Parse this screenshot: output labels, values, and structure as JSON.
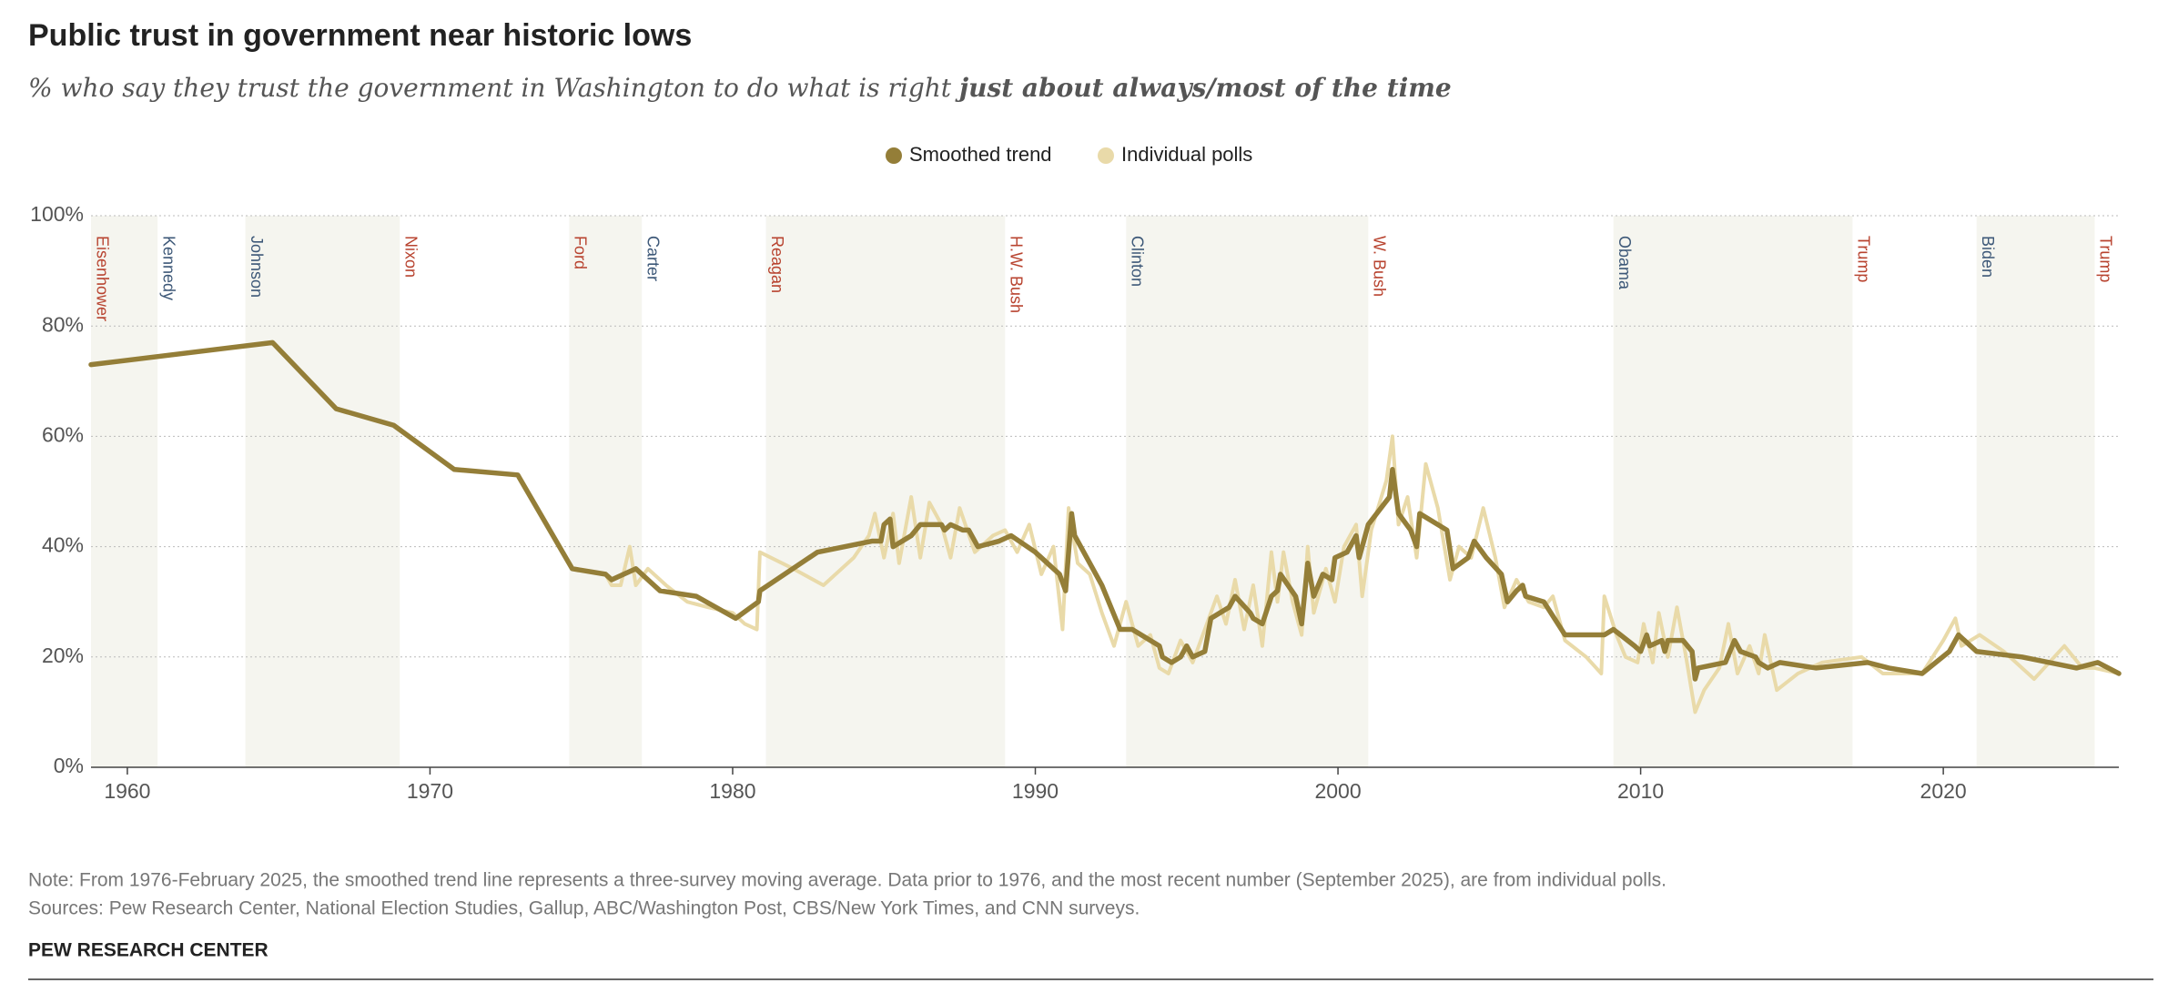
{
  "chart_data": {
    "type": "line",
    "title": "Public trust in government near historic lows",
    "subtitle": "% who say they trust the government in Washington to do what is right ",
    "subtitle_emphasis": "just about always/most of the time",
    "xlim": [
      1958.8,
      2025.8
    ],
    "xticks": [
      1960,
      1970,
      1980,
      1990,
      2000,
      2010,
      2020
    ],
    "ylim": [
      0,
      100
    ],
    "yticks": [
      {
        "value": 0,
        "label": "0%"
      },
      {
        "value": 20,
        "label": "20%"
      },
      {
        "value": 40,
        "label": "40%"
      },
      {
        "value": 60,
        "label": "60%"
      },
      {
        "value": 80,
        "label": "80%"
      },
      {
        "value": 100,
        "label": "100%"
      }
    ],
    "grid": true,
    "legend": "top",
    "presidents": [
      {
        "name": "Eisenhower",
        "start": 1953,
        "color": "#b8432f"
      },
      {
        "name": "Kennedy",
        "start": 1961,
        "color": "#3d5878"
      },
      {
        "name": "Johnson",
        "start": 1963.9,
        "color": "#3d5878"
      },
      {
        "name": "Nixon",
        "start": 1969,
        "color": "#b8432f"
      },
      {
        "name": "Ford",
        "start": 1974.6,
        "color": "#b8432f"
      },
      {
        "name": "Carter",
        "start": 1977,
        "color": "#3d5878"
      },
      {
        "name": "Reagan",
        "start": 1981.1,
        "color": "#b8432f"
      },
      {
        "name": "H.W. Bush",
        "start": 1989,
        "color": "#b8432f"
      },
      {
        "name": "Clinton",
        "start": 1993,
        "color": "#3d5878"
      },
      {
        "name": "W. Bush",
        "start": 2001,
        "color": "#b8432f"
      },
      {
        "name": "Obama",
        "start": 2009.1,
        "color": "#3d5878"
      },
      {
        "name": "Trump",
        "start": 2017,
        "color": "#b8432f"
      },
      {
        "name": "Biden",
        "start": 2021.1,
        "color": "#3d5878"
      },
      {
        "name": "Trump",
        "start": 2025,
        "color": "#b8432f"
      }
    ],
    "band_color": "#f5f5ef",
    "series": [
      {
        "name": "Individual polls",
        "color": "#e9daa9",
        "x": [
          1958.8,
          1964.8,
          1966.9,
          1968.8,
          1970.8,
          1972.9,
          1974.7,
          1975.8,
          1976.0,
          1976.3,
          1976.6,
          1976.8,
          1977.2,
          1977.8,
          1978.5,
          1979.2,
          1980.0,
          1980.4,
          1980.8,
          1980.9,
          1982,
          1983,
          1984,
          1984.5,
          1984.7,
          1985,
          1985.3,
          1985.5,
          1985.9,
          1986.2,
          1986.5,
          1986.9,
          1987.2,
          1987.5,
          1988,
          1988.6,
          1989,
          1989.4,
          1989.8,
          1990.2,
          1990.6,
          1990.9,
          1991.1,
          1991.4,
          1991.8,
          1992.2,
          1992.6,
          1993,
          1993.4,
          1993.8,
          1994.1,
          1994.4,
          1994.8,
          1995.2,
          1995.6,
          1996,
          1996.3,
          1996.6,
          1996.9,
          1997.2,
          1997.5,
          1997.8,
          1998,
          1998.2,
          1998.5,
          1998.8,
          1999,
          1999.2,
          1999.6,
          1999.9,
          2000.2,
          2000.6,
          2000.8,
          2001.1,
          2001.6,
          2001.8,
          2002,
          2002.3,
          2002.6,
          2002.9,
          2003.3,
          2003.7,
          2004,
          2004.4,
          2004.8,
          2005.2,
          2005.5,
          2005.9,
          2006.3,
          2006.8,
          2007.1,
          2007.5,
          2008.2,
          2008.7,
          2008.8,
          2009.2,
          2009.5,
          2009.9,
          2010.1,
          2010.4,
          2010.6,
          2010.9,
          2011.2,
          2011.5,
          2011.8,
          2012.1,
          2012.6,
          2012.9,
          2013.2,
          2013.6,
          2013.9,
          2014.1,
          2014.5,
          2015.2,
          2016,
          2017.3,
          2018,
          2019.3,
          2020,
          2020.4,
          2020.6,
          2021.2,
          2022,
          2023,
          2024,
          2024.6,
          2025,
          2025.8
        ],
        "values": [
          73,
          77,
          65,
          62,
          54,
          53,
          36,
          35,
          33,
          33,
          40,
          33,
          36,
          33,
          30,
          29,
          28,
          26,
          25,
          39,
          36,
          33,
          38,
          42,
          46,
          38,
          46,
          37,
          49,
          38,
          48,
          44,
          38,
          47,
          39,
          42,
          43,
          39,
          44,
          35,
          40,
          25,
          47,
          37,
          35,
          28,
          22,
          30,
          22,
          24,
          18,
          17,
          23,
          19,
          25,
          31,
          26,
          34,
          25,
          33,
          22,
          39,
          30,
          39,
          30,
          24,
          40,
          28,
          36,
          30,
          40,
          44,
          31,
          43,
          52,
          60,
          44,
          49,
          38,
          55,
          47,
          34,
          40,
          38,
          47,
          38,
          29,
          34,
          30,
          29,
          31,
          23,
          20,
          17,
          31,
          24,
          20,
          19,
          26,
          19,
          28,
          20,
          29,
          20,
          10,
          14,
          18,
          26,
          17,
          22,
          17,
          24,
          14,
          17,
          19,
          20,
          17,
          17,
          23,
          27,
          22,
          24,
          21,
          16,
          22,
          18,
          18,
          17
        ]
      },
      {
        "name": "Smoothed trend",
        "color": "#947e38",
        "x": [
          1958.8,
          1964.8,
          1966.9,
          1968.8,
          1970.8,
          1972.9,
          1974.7,
          1975.8,
          1976.0,
          1976.4,
          1976.8,
          1977.6,
          1978.8,
          1980.1,
          1980.85,
          1980.9,
          1982.8,
          1984.6,
          1984.9,
          1985.0,
          1985.2,
          1985.3,
          1985.9,
          1986.2,
          1986.9,
          1987.0,
          1987.2,
          1987.6,
          1987.8,
          1988.1,
          1988.8,
          1989.2,
          1990.0,
          1990.4,
          1990.8,
          1991.0,
          1991.2,
          1991.3,
          1991.7,
          1992.2,
          1992.8,
          1993.2,
          1994.1,
          1994.2,
          1994.5,
          1994.8,
          1995.0,
          1995.2,
          1995.6,
          1995.8,
          1996.4,
          1996.6,
          1997.1,
          1997.2,
          1997.5,
          1997.8,
          1998.0,
          1998.1,
          1998.6,
          1998.8,
          1999.0,
          1999.2,
          1999.5,
          1999.8,
          1999.9,
          2000.3,
          2000.6,
          2000.7,
          2001.0,
          2001.7,
          2001.8,
          2002.0,
          2002.4,
          2002.6,
          2002.7,
          2003.6,
          2003.8,
          2004.3,
          2004.5,
          2004.9,
          2005.4,
          2005.6,
          2005.9,
          2006.1,
          2006.2,
          2006.8,
          2007.5,
          2008.8,
          2009.1,
          2009.8,
          2010.0,
          2010.2,
          2010.3,
          2010.7,
          2010.8,
          2010.9,
          2011.4,
          2011.7,
          2011.8,
          2011.9,
          2012.8,
          2013.1,
          2013.3,
          2013.8,
          2013.9,
          2014.2,
          2014.6,
          2015.8,
          2017.5,
          2018.2,
          2019.3,
          2020.2,
          2020.5,
          2021.1,
          2022.6,
          2024.4,
          2025.1,
          2025.8
        ],
        "values": [
          73,
          77,
          65,
          62,
          54,
          53,
          36,
          35,
          34,
          35,
          36,
          32,
          31,
          27,
          30,
          32,
          39,
          41,
          41,
          44,
          45,
          40,
          42,
          44,
          44,
          43,
          44,
          43,
          43,
          40,
          41,
          42,
          39,
          37,
          35,
          32,
          46,
          42,
          38,
          33,
          25,
          25,
          22,
          20,
          19,
          20,
          22,
          20,
          21,
          27,
          29,
          31,
          28,
          27,
          26,
          31,
          32,
          35,
          31,
          26,
          37,
          31,
          35,
          34,
          38,
          39,
          42,
          38,
          44,
          49,
          54,
          46,
          43,
          40,
          46,
          43,
          36,
          38,
          41,
          38,
          35,
          30,
          32,
          33,
          31,
          30,
          24,
          24,
          25,
          22,
          21,
          24,
          22,
          23,
          21,
          23,
          23,
          21,
          16,
          18,
          19,
          23,
          21,
          20,
          19,
          18,
          19,
          18,
          19,
          18,
          17,
          21,
          24,
          21,
          20,
          18,
          19,
          17
        ]
      }
    ],
    "legend_order": [
      "Smoothed trend",
      "Individual polls"
    ],
    "note": "Note: From 1976-February 2025, the smoothed trend line represents a three-survey moving average. Data prior to 1976, and the most recent number (September 2025), are from individual polls.",
    "source": "Sources: Pew Research Center, National Election Studies, Gallup, ABC/Washington Post, CBS/New York Times, and CNN surveys.",
    "credit": "PEW RESEARCH CENTER"
  }
}
